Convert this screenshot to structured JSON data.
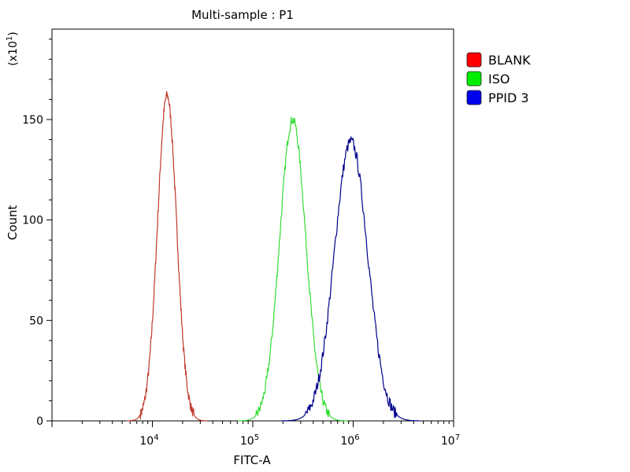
{
  "chart_data": {
    "type": "line",
    "title": "Multi-sample : P1",
    "xlabel": "FITC-A",
    "ylabel": "Count",
    "y_multiplier": "(x10",
    "y_multiplier_exp": "1",
    "y_multiplier_close": ")",
    "xscale": "log",
    "xlim": [
      1000,
      10000000
    ],
    "ylim": [
      0,
      195
    ],
    "x_ticks": [
      {
        "base": "10",
        "exp": "4",
        "value": 10000
      },
      {
        "base": "10",
        "exp": "5",
        "value": 100000
      },
      {
        "base": "10",
        "exp": "6",
        "value": 1000000
      },
      {
        "base": "10",
        "exp": "7",
        "value": 10000000
      }
    ],
    "y_ticks": [
      {
        "label": "0",
        "value": 0
      },
      {
        "label": "50",
        "value": 50
      },
      {
        "label": "100",
        "value": 100
      },
      {
        "label": "150",
        "value": 150
      }
    ],
    "legend_position": "right",
    "series": [
      {
        "name": "BLANK",
        "color": "#c0392b",
        "legend_color": "#ff0000",
        "peak_x": 14000,
        "peak_y": 162,
        "width_decades": 0.095,
        "noise": 2.5
      },
      {
        "name": "ISO",
        "color": "#33dd33",
        "legend_color": "#00ee00",
        "peak_x": 250000,
        "peak_y": 150,
        "width_decades": 0.13,
        "noise": 2.5
      },
      {
        "name": "PPID  3",
        "color": "#00008b",
        "legend_color": "#0000ee",
        "peak_x": 950000,
        "peak_y": 139,
        "width_decades": 0.165,
        "noise": 3.0
      }
    ]
  }
}
